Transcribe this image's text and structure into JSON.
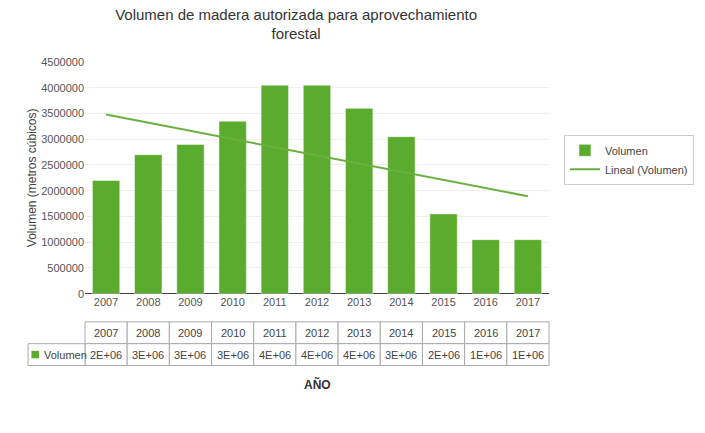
{
  "chart_data": {
    "type": "bar",
    "title": "Volumen de madera autorizada para aprovechamiento\nforestal",
    "xlabel": "AÑO",
    "ylabel": "Volumen (metros cúbicos)",
    "categories": [
      "2007",
      "2008",
      "2009",
      "2010",
      "2011",
      "2012",
      "2013",
      "2014",
      "2015",
      "2016",
      "2017"
    ],
    "series": [
      {
        "name": "Volumen",
        "type": "bar",
        "color": "#5aab2e",
        "values": [
          2200000,
          2700000,
          2900000,
          3350000,
          4050000,
          4050000,
          3600000,
          3050000,
          1550000,
          1050000,
          1050000
        ],
        "value_labels": [
          "2E+06",
          "3E+06",
          "3E+06",
          "3E+06",
          "4E+06",
          "4E+06",
          "4E+06",
          "3E+06",
          "2E+06",
          "1E+06",
          "1E+06"
        ]
      },
      {
        "name": "Lineal (Volumen)",
        "type": "line",
        "color": "#6ab040",
        "values": [
          3479545.45,
          3320909.09,
          3162272.73,
          3003636.36,
          2845000.0,
          2686363.64,
          2527727.27,
          2369090.91,
          2210454.55,
          2051818.18,
          1893181.82
        ]
      }
    ],
    "ylim": [
      0,
      4500000
    ],
    "yticks": [
      0,
      500000,
      1000000,
      1500000,
      2000000,
      2500000,
      3000000,
      3500000,
      4000000,
      4500000
    ],
    "grid": true,
    "legend": "right"
  }
}
